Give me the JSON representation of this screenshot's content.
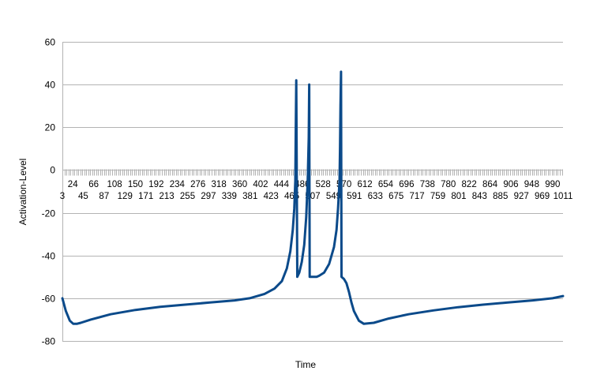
{
  "chart_data": {
    "type": "line",
    "title": "",
    "xlabel": "Time",
    "ylabel": "Activation-Level",
    "ylim": [
      -80,
      60
    ],
    "xlim": [
      3,
      1011
    ],
    "y_ticks": [
      -80,
      -60,
      -40,
      -20,
      0,
      20,
      40,
      60
    ],
    "x_tick_labels_upper": [
      "24",
      "66",
      "108",
      "150",
      "192",
      "234",
      "276",
      "318",
      "360",
      "402",
      "444",
      "486",
      "528",
      "570",
      "612",
      "654",
      "696",
      "738",
      "780",
      "822",
      "864",
      "906",
      "948",
      "990"
    ],
    "x_tick_labels_lower": [
      "3",
      "45",
      "87",
      "129",
      "171",
      "213",
      "255",
      "297",
      "339",
      "381",
      "423",
      "465",
      "507",
      "549",
      "591",
      "633",
      "675",
      "717",
      "759",
      "801",
      "843",
      "885",
      "927",
      "969",
      "1011"
    ],
    "grid": true,
    "legend": "none",
    "series_color": "#0b4a8a",
    "series": [
      {
        "x": [
          3,
          10,
          18,
          25,
          32,
          40,
          60,
          100,
          150,
          200,
          250,
          300,
          350,
          380,
          410,
          430,
          445,
          455,
          462,
          467,
          470,
          472,
          473,
          474,
          476,
          480,
          485,
          490,
          494,
          497,
          499,
          500,
          501,
          502,
          504,
          506,
          510,
          515,
          520,
          530,
          540,
          550,
          555,
          558,
          561,
          562,
          563,
          564,
          565,
          570,
          575,
          580,
          585,
          590,
          600,
          610,
          630,
          660,
          700,
          750,
          800,
          850,
          900,
          950,
          990,
          1011
        ],
        "y": [
          -60,
          -66,
          -70.5,
          -72,
          -72,
          -71.5,
          -70,
          -67.5,
          -65.5,
          -64,
          -63,
          -62,
          -61,
          -60,
          -58,
          -55.5,
          -52,
          -46,
          -38,
          -28,
          -18,
          -5,
          20,
          42,
          -50,
          -48,
          -43,
          -35,
          -22,
          -5,
          15,
          40,
          -50,
          -50,
          -50,
          -50,
          -50,
          -50,
          -49.5,
          -48,
          -44,
          -36,
          -28,
          -18,
          -5,
          10,
          30,
          46,
          -50,
          -51,
          -53,
          -57,
          -62,
          -66,
          -70.5,
          -72,
          -71.5,
          -69.5,
          -67.5,
          -65.7,
          -64.2,
          -63,
          -62,
          -61,
          -60,
          -59
        ]
      }
    ]
  }
}
